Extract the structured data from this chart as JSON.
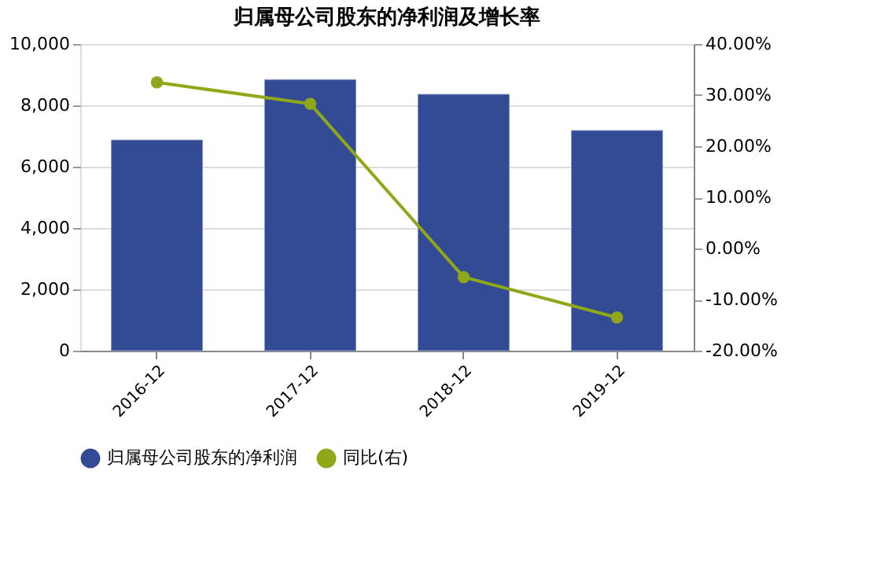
{
  "chart_data": {
    "type": "bar",
    "title": "归属母公司股东的净利润及增长率",
    "categories": [
      "2016-12",
      "2017-12",
      "2018-12",
      "2019-12"
    ],
    "series": [
      {
        "name": "归属母公司股东的净利润",
        "color": "#334a94",
        "values": [
          6870,
          8840,
          8360,
          7180
        ]
      },
      {
        "name": "同比(右)",
        "type": "line",
        "axis": "y2",
        "color": "#8fa81a",
        "marker": "circle",
        "values": [
          32.5,
          28.3,
          -5.6,
          -13.5
        ]
      }
    ],
    "ylim": [
      0,
      10000
    ],
    "yticks": [
      {
        "value": 0,
        "label": "0"
      },
      {
        "value": 2000,
        "label": "2,000"
      },
      {
        "value": 4000,
        "label": "4,000"
      },
      {
        "value": 6000,
        "label": "6,000"
      },
      {
        "value": 8000,
        "label": "8,000"
      },
      {
        "value": 10000,
        "label": "10,000"
      }
    ],
    "y2lim": [
      -20,
      40
    ],
    "y2ticks": [
      {
        "value": -20,
        "label": "-20.00%"
      },
      {
        "value": -10,
        "label": "-10.00%"
      },
      {
        "value": 0,
        "label": "0.00%"
      },
      {
        "value": 10,
        "label": "10.00%"
      },
      {
        "value": 20,
        "label": "20.00%"
      },
      {
        "value": 30,
        "label": "30.00%"
      },
      {
        "value": 40,
        "label": "40.00%"
      }
    ],
    "grid": "y",
    "legend": "bottom"
  }
}
